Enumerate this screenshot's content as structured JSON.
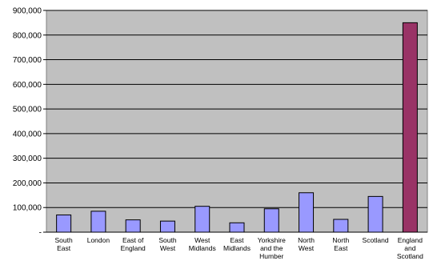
{
  "chart_data": {
    "type": "bar",
    "title": "",
    "xlabel": "",
    "ylabel": "",
    "ylim": [
      0,
      900000
    ],
    "y_ticks": [
      0,
      100000,
      200000,
      300000,
      400000,
      500000,
      600000,
      700000,
      800000,
      900000
    ],
    "y_tick_labels": [
      "-",
      "100,000",
      "200,000",
      "300,000",
      "400,000",
      "500,000",
      "600,000",
      "700,000",
      "800,000",
      "900,000"
    ],
    "grid": true,
    "legend": "none",
    "categories": [
      [
        "South",
        "East"
      ],
      [
        "London"
      ],
      [
        "East of",
        "England"
      ],
      [
        "South",
        "West"
      ],
      [
        "West",
        "Midlands"
      ],
      [
        "East",
        "Midlands"
      ],
      [
        "Yorkshire",
        "and the",
        "Humber"
      ],
      [
        "North",
        "West"
      ],
      [
        "North",
        "East"
      ],
      [
        "Scotland"
      ],
      [
        "England",
        "and",
        "Scotland"
      ]
    ],
    "values": [
      70000,
      85000,
      50000,
      45000,
      105000,
      38000,
      95000,
      160000,
      52000,
      145000,
      850000
    ],
    "colors": {
      "bar": "#9999ff",
      "highlight_bar": "#993366",
      "plot_background": "#c0c0c0",
      "gridline": "#000000"
    },
    "highlight_index": 10
  }
}
